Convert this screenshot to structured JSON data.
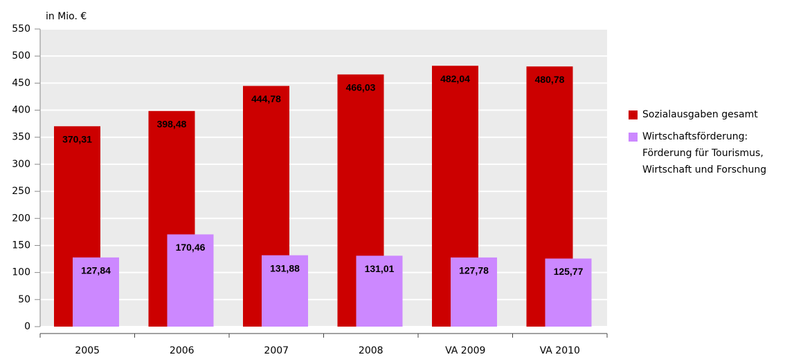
{
  "chart_data": {
    "type": "bar",
    "y_label": "in Mio. €",
    "categories": [
      "2005",
      "2006",
      "2007",
      "2008",
      "VA 2009",
      "VA 2010"
    ],
    "series": [
      {
        "name": "Sozialausgaben gesamt",
        "color": "#cc0000",
        "values": [
          370.31,
          398.48,
          444.78,
          466.03,
          482.04,
          480.78
        ],
        "value_labels": [
          "370,31",
          "398,48",
          "444,78",
          "466,03",
          "482,04",
          "480,78"
        ]
      },
      {
        "name": "Wirtschaftsförderung: Förderung für Tourismus, Wirtschaft und Forschung",
        "color": "#cc88ff",
        "values": [
          127.84,
          170.46,
          131.88,
          131.01,
          127.78,
          125.77
        ],
        "value_labels": [
          "127,84",
          "170,46",
          "131,88",
          "131,01",
          "127,78",
          "125,77"
        ]
      }
    ],
    "ylim": [
      0,
      550
    ],
    "yticks": [
      0,
      50,
      100,
      150,
      200,
      250,
      300,
      350,
      400,
      450,
      500,
      550
    ],
    "grid": true,
    "legend": "right"
  }
}
